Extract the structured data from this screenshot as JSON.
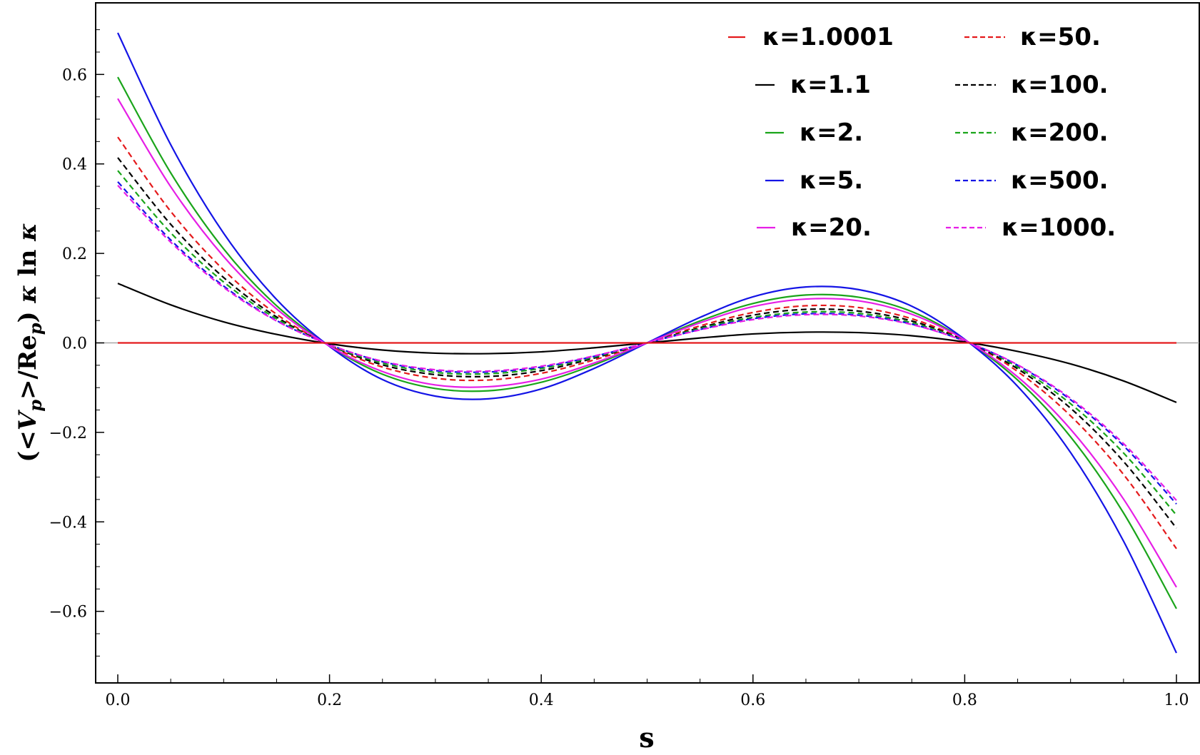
{
  "chart_data": {
    "type": "line",
    "xlabel": "s",
    "ylabel": "(<Vp>/Rep) κ ln κ",
    "xlim": [
      0,
      1
    ],
    "ylim": [
      -0.76,
      0.76
    ],
    "x_ticks": [
      {
        "value": 0.0,
        "label": "0.0"
      },
      {
        "value": 0.2,
        "label": "0.2"
      },
      {
        "value": 0.4,
        "label": "0.4"
      },
      {
        "value": 0.6,
        "label": "0.6"
      },
      {
        "value": 0.8,
        "label": "0.8"
      },
      {
        "value": 1.0,
        "label": "1.0"
      }
    ],
    "y_ticks": [
      {
        "value": -0.6,
        "label": "−0.6"
      },
      {
        "value": -0.4,
        "label": "−0.4"
      },
      {
        "value": -0.2,
        "label": "−0.2"
      },
      {
        "value": 0.0,
        "label": "0.0"
      },
      {
        "value": 0.2,
        "label": "0.2"
      },
      {
        "value": 0.4,
        "label": "0.4"
      },
      {
        "value": 0.6,
        "label": "0.6"
      }
    ],
    "grid": false,
    "legend_position": "top-right",
    "x": [
      0,
      0.05,
      0.1,
      0.15,
      0.2,
      0.25,
      0.3,
      0.35,
      0.4,
      0.45,
      0.5,
      0.55,
      0.6,
      0.65,
      0.7,
      0.75,
      0.8,
      0.85,
      0.9,
      0.95,
      1.0
    ],
    "series": [
      {
        "name": "κ=1.0001",
        "color": "#e41a1c",
        "dash": "solid",
        "values": [
          0.0,
          0.0,
          0.0,
          0.0,
          0.0,
          0.0,
          0.0,
          0.0,
          0.0,
          0.0,
          0.0,
          0.0,
          0.0,
          0.0,
          0.0,
          0.0,
          0.0,
          0.0,
          0.0,
          0.0,
          0.0
        ]
      },
      {
        "name": "κ=1.1",
        "color": "#000000",
        "dash": "solid",
        "values": [
          0.133,
          0.085,
          0.047,
          0.019,
          -0.002,
          -0.016,
          -0.023,
          -0.024,
          -0.02,
          -0.011,
          0.0,
          0.011,
          0.02,
          0.024,
          0.023,
          0.016,
          0.002,
          -0.019,
          -0.047,
          -0.085,
          -0.133
        ]
      },
      {
        "name": "κ=2.",
        "color": "#1aa51a",
        "dash": "solid",
        "values": [
          0.594,
          0.38,
          0.21,
          0.083,
          -0.007,
          -0.07,
          -0.102,
          -0.107,
          -0.088,
          -0.049,
          0.0,
          0.049,
          0.088,
          0.107,
          0.102,
          0.07,
          0.007,
          -0.083,
          -0.21,
          -0.38,
          -0.594
        ]
      },
      {
        "name": "κ=5.",
        "color": "#1414e6",
        "dash": "solid",
        "values": [
          0.693,
          0.443,
          0.245,
          0.097,
          -0.008,
          -0.082,
          -0.119,
          -0.125,
          -0.103,
          -0.057,
          0.0,
          0.057,
          0.103,
          0.125,
          0.119,
          0.082,
          0.008,
          -0.097,
          -0.245,
          -0.443,
          -0.693
        ]
      },
      {
        "name": "κ=20.",
        "color": "#e61ee6",
        "dash": "solid",
        "values": [
          0.546,
          0.349,
          0.193,
          0.076,
          -0.007,
          -0.064,
          -0.094,
          -0.098,
          -0.081,
          -0.045,
          0.0,
          0.045,
          0.081,
          0.098,
          0.094,
          0.064,
          0.007,
          -0.076,
          -0.193,
          -0.349,
          -0.546
        ]
      },
      {
        "name": "κ=50.",
        "color": "#e41a1c",
        "dash": "dashed",
        "values": [
          0.46,
          0.294,
          0.163,
          0.064,
          -0.006,
          -0.054,
          -0.079,
          -0.083,
          -0.068,
          -0.038,
          0.0,
          0.038,
          0.068,
          0.083,
          0.079,
          0.054,
          0.006,
          -0.064,
          -0.163,
          -0.294,
          -0.46
        ]
      },
      {
        "name": "κ=100.",
        "color": "#000000",
        "dash": "dashed",
        "values": [
          0.414,
          0.265,
          0.146,
          0.058,
          -0.005,
          -0.049,
          -0.071,
          -0.075,
          -0.062,
          -0.034,
          0.0,
          0.034,
          0.062,
          0.075,
          0.071,
          0.049,
          0.005,
          -0.058,
          -0.146,
          -0.265,
          -0.414
        ]
      },
      {
        "name": "κ=200.",
        "color": "#1aa51a",
        "dash": "dashed",
        "values": [
          0.385,
          0.246,
          0.136,
          0.054,
          -0.005,
          -0.045,
          -0.066,
          -0.069,
          -0.057,
          -0.032,
          0.0,
          0.032,
          0.057,
          0.069,
          0.066,
          0.045,
          0.005,
          -0.054,
          -0.136,
          -0.246,
          -0.385
        ]
      },
      {
        "name": "κ=500.",
        "color": "#1414e6",
        "dash": "dashed",
        "values": [
          0.36,
          0.23,
          0.127,
          0.05,
          -0.004,
          -0.042,
          -0.062,
          -0.065,
          -0.054,
          -0.03,
          0.0,
          0.03,
          0.054,
          0.065,
          0.062,
          0.042,
          0.004,
          -0.05,
          -0.127,
          -0.23,
          -0.36
        ]
      },
      {
        "name": "κ=1000.",
        "color": "#e61ee6",
        "dash": "dashed",
        "values": [
          0.352,
          0.225,
          0.124,
          0.049,
          -0.004,
          -0.041,
          -0.06,
          -0.063,
          -0.052,
          -0.029,
          0.0,
          0.029,
          0.052,
          0.063,
          0.06,
          0.041,
          0.004,
          -0.049,
          -0.124,
          -0.225,
          -0.352
        ]
      }
    ]
  }
}
